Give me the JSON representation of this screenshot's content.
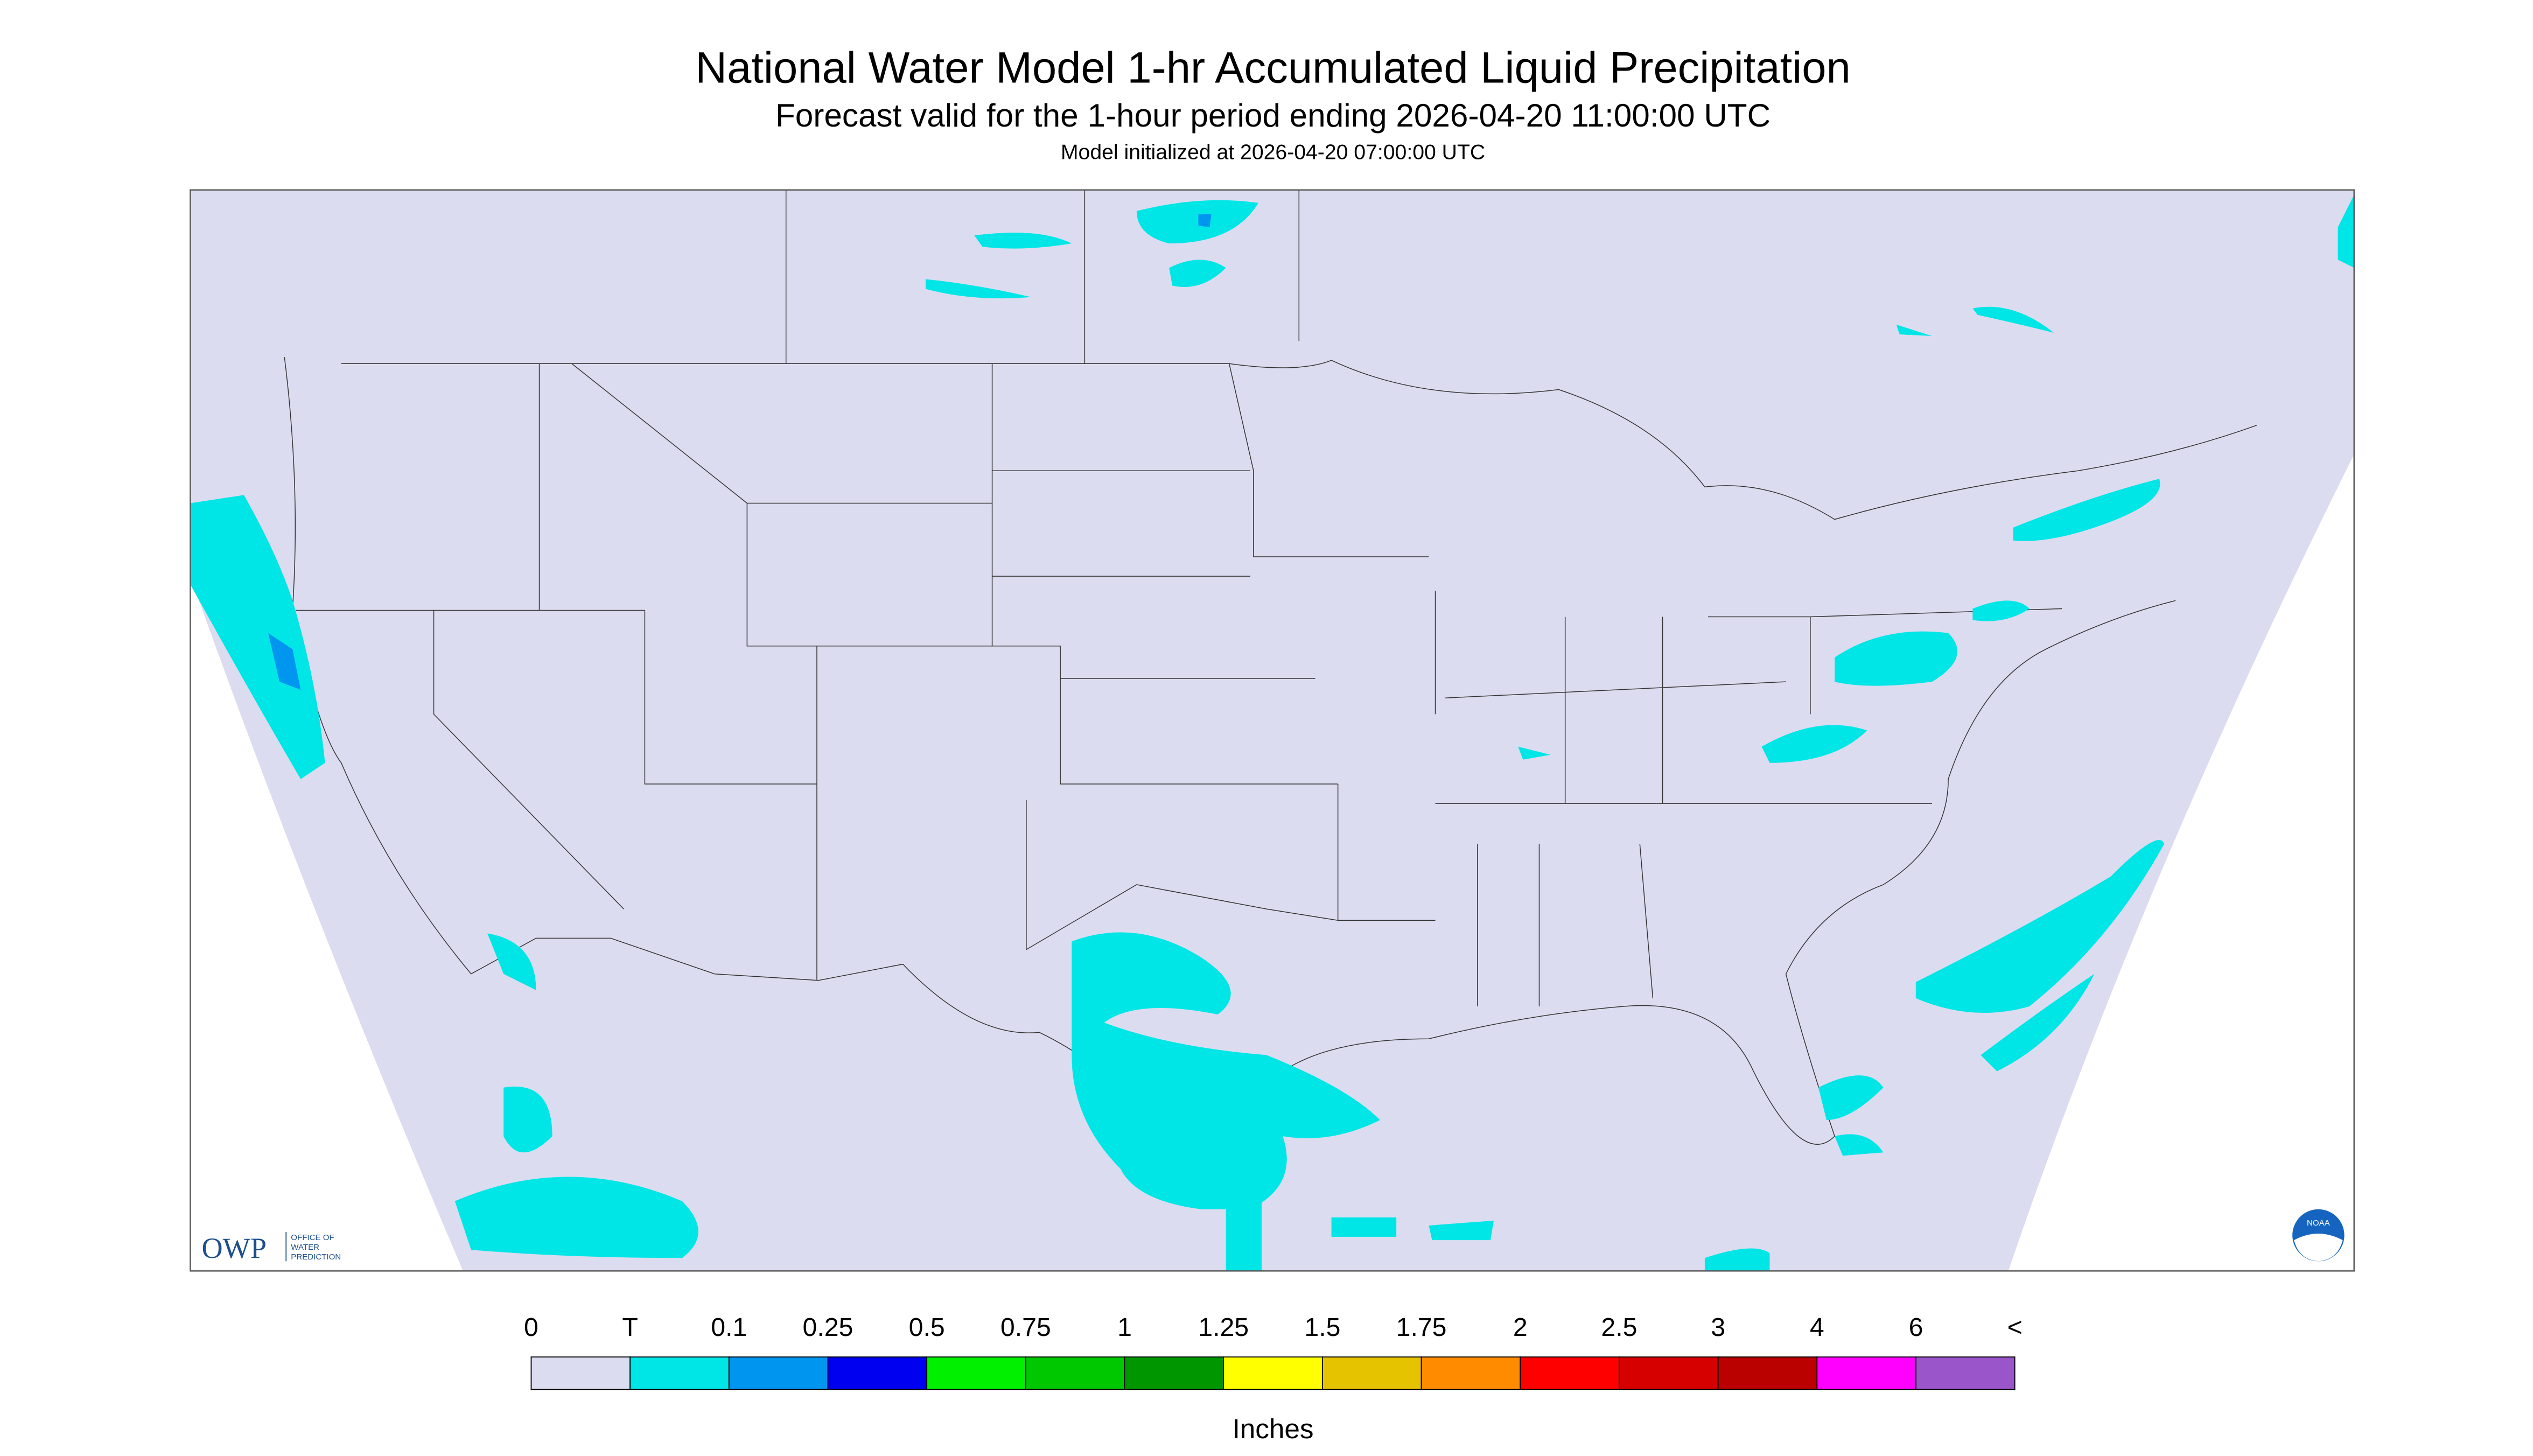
{
  "header": {
    "title": "National Water Model 1-hr Accumulated Liquid Precipitation",
    "subtitle": "Forecast valid for the 1-hour period ending 2026-04-20 11:00:00 UTC",
    "initialized": "Model initialized at 2026-04-20 07:00:00 UTC"
  },
  "logos": {
    "owp": "OWP",
    "owp_name": [
      "OFFICE OF",
      "WATER",
      "PREDICTION"
    ],
    "noaa": "NOAA"
  },
  "legend": {
    "labels": [
      "0",
      "T",
      "0.1",
      "0.25",
      "0.5",
      "0.75",
      "1",
      "1.25",
      "1.5",
      "1.75",
      "2",
      "2.5",
      "3",
      "4",
      "6",
      "<"
    ],
    "colors": [
      "#dcdcf0",
      "#00e6e6",
      "#0096f0",
      "#0000f0",
      "#00f000",
      "#00c800",
      "#009600",
      "#ffff00",
      "#e6c300",
      "#ff8c00",
      "#ff0000",
      "#d70000",
      "#bb0000",
      "#ff00ff",
      "#9955c9"
    ],
    "unit": "Inches"
  }
}
